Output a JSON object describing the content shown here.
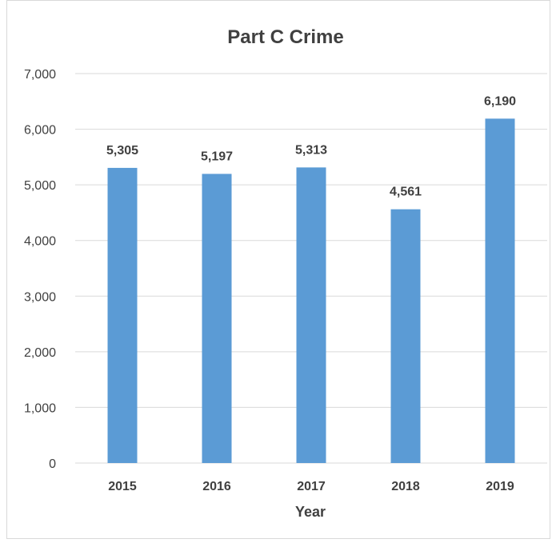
{
  "chart_data": {
    "type": "bar",
    "title": "Part C Crime",
    "xlabel": "Year",
    "ylabel": "",
    "categories": [
      "2015",
      "2016",
      "2017",
      "2018",
      "2019"
    ],
    "values": [
      5305,
      5197,
      5313,
      4561,
      6190
    ],
    "value_labels": [
      "5,305",
      "5,197",
      "5,313",
      "4,561",
      "6,190"
    ],
    "ylim": [
      0,
      7000
    ],
    "y_ticks": [
      0,
      1000,
      2000,
      3000,
      4000,
      5000,
      6000,
      7000
    ],
    "y_tick_labels": [
      "0",
      "1,000",
      "2,000",
      "3,000",
      "4,000",
      "5,000",
      "6,000",
      "7,000"
    ],
    "grid": true,
    "legend": "none",
    "colors": {
      "bar": "#5b9bd5",
      "grid": "#d9d9d9",
      "text": "#404040"
    }
  }
}
